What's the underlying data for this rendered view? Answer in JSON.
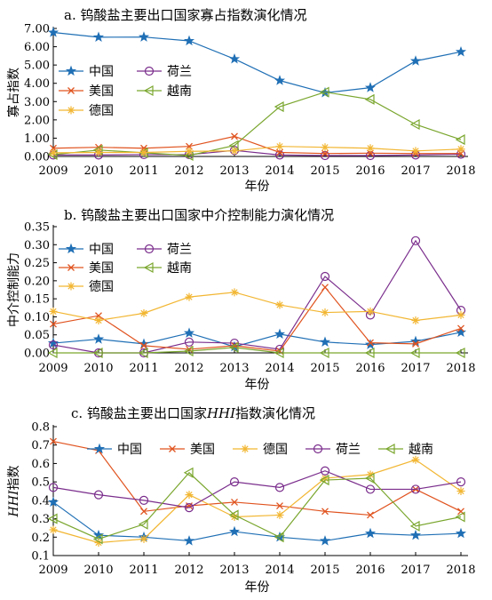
{
  "colors": {
    "China": "#1f6fb5",
    "USA": "#e0531f",
    "Germany": "#f2b632",
    "Netherlands": "#7a2d8c",
    "Vietnam": "#7aa62e"
  },
  "chart_data": [
    {
      "type": "line",
      "title": "a. 钨酸盐主要出口国家寡占指数演化情况",
      "xlabel": "年份",
      "ylabel": "寡占指数",
      "x": [
        2009,
        2010,
        2011,
        2012,
        2013,
        2014,
        2015,
        2016,
        2017,
        2018
      ],
      "ylim": [
        0,
        7
      ],
      "yticks": [
        "0.00",
        "1.00",
        "2.00",
        "3.00",
        "4.00",
        "5.00",
        "6.00",
        "7.00"
      ],
      "legend": {
        "columns": 2,
        "placement": "left-middle"
      },
      "series": [
        {
          "name": "中国",
          "key": "China",
          "marker": "star",
          "values": [
            6.78,
            6.52,
            6.53,
            6.32,
            5.33,
            4.15,
            3.48,
            3.76,
            5.22,
            5.72
          ]
        },
        {
          "name": "荷兰",
          "key": "Netherlands",
          "marker": "circle",
          "values": [
            0.08,
            0.08,
            0.1,
            0.1,
            0.33,
            0.08,
            0.05,
            0.05,
            0.08,
            0.12
          ]
        },
        {
          "name": "美国",
          "key": "USA",
          "marker": "x",
          "values": [
            0.45,
            0.5,
            0.45,
            0.55,
            1.1,
            0.22,
            0.16,
            0.18,
            0.16,
            0.16
          ]
        },
        {
          "name": "越南",
          "key": "Vietnam",
          "marker": "triangle-left",
          "values": [
            0.1,
            0.35,
            0.2,
            0.05,
            0.6,
            2.72,
            3.52,
            3.12,
            1.75,
            0.92
          ]
        },
        {
          "name": "德国",
          "key": "Germany",
          "marker": "asterisk",
          "values": [
            0.2,
            0.22,
            0.22,
            0.28,
            0.3,
            0.55,
            0.5,
            0.45,
            0.3,
            0.4
          ]
        }
      ]
    },
    {
      "type": "line",
      "title": "b. 钨酸盐主要出口国家中介控制能力演化情况",
      "xlabel": "年份",
      "ylabel": "中介控制能力",
      "x": [
        2009,
        2010,
        2011,
        2012,
        2013,
        2014,
        2015,
        2016,
        2017,
        2018
      ],
      "ylim": [
        0,
        0.35
      ],
      "yticks": [
        "0.00",
        "0.05",
        "0.10",
        "0.15",
        "0.20",
        "0.25",
        "0.30",
        "0.35"
      ],
      "legend": {
        "columns": 2,
        "placement": "top-left"
      },
      "series": [
        {
          "name": "中国",
          "key": "China",
          "marker": "star",
          "values": [
            0.027,
            0.038,
            0.025,
            0.055,
            0.017,
            0.052,
            0.03,
            0.023,
            0.032,
            0.057
          ]
        },
        {
          "name": "荷兰",
          "key": "Netherlands",
          "marker": "circle",
          "values": [
            0.022,
            0.0,
            0.0,
            0.03,
            0.027,
            0.01,
            0.212,
            0.105,
            0.311,
            0.118
          ]
        },
        {
          "name": "美国",
          "key": "USA",
          "marker": "x",
          "values": [
            0.08,
            0.103,
            0.02,
            0.01,
            0.02,
            0.005,
            0.182,
            0.028,
            0.025,
            0.068
          ]
        },
        {
          "name": "越南",
          "key": "Vietnam",
          "marker": "triangle-left",
          "values": [
            0.0,
            0.0,
            0.0,
            0.005,
            0.015,
            0.0,
            0.0,
            0.0,
            0.0,
            0.0
          ]
        },
        {
          "name": "德国",
          "key": "Germany",
          "marker": "asterisk",
          "values": [
            0.115,
            0.09,
            0.11,
            0.155,
            0.168,
            0.133,
            0.112,
            0.115,
            0.09,
            0.105
          ]
        }
      ]
    },
    {
      "type": "line",
      "title_parts": [
        "c. 钨酸盐主要出口国家",
        "HHI",
        "指数演化情况"
      ],
      "xlabel": "年份",
      "ylabel_parts": [
        "HHI",
        "指数"
      ],
      "x": [
        2009,
        2010,
        2011,
        2012,
        2013,
        2014,
        2015,
        2016,
        2017,
        2018
      ],
      "ylim": [
        0.1,
        0.8
      ],
      "yticks": [
        "0.1",
        "0.2",
        "0.3",
        "0.4",
        "0.5",
        "0.6",
        "0.7",
        "0.8"
      ],
      "legend": {
        "columns": 5,
        "placement": "top"
      },
      "series": [
        {
          "name": "中国",
          "key": "China",
          "marker": "star",
          "values": [
            0.39,
            0.21,
            0.2,
            0.18,
            0.23,
            0.2,
            0.18,
            0.22,
            0.21,
            0.22
          ]
        },
        {
          "name": "美国",
          "key": "USA",
          "marker": "x",
          "values": [
            0.72,
            0.67,
            0.34,
            0.37,
            0.39,
            0.37,
            0.34,
            0.32,
            0.46,
            0.34
          ]
        },
        {
          "name": "德国",
          "key": "Germany",
          "marker": "asterisk",
          "values": [
            0.24,
            0.17,
            0.19,
            0.43,
            0.31,
            0.32,
            0.52,
            0.54,
            0.62,
            0.45
          ]
        },
        {
          "name": "荷兰",
          "key": "Netherlands",
          "marker": "circle",
          "values": [
            0.47,
            0.43,
            0.4,
            0.36,
            0.5,
            0.47,
            0.56,
            0.46,
            0.46,
            0.5
          ]
        },
        {
          "name": "越南",
          "key": "Vietnam",
          "marker": "triangle-left",
          "values": [
            0.3,
            0.19,
            0.27,
            0.55,
            0.32,
            0.2,
            0.51,
            0.52,
            0.26,
            0.31
          ]
        }
      ]
    }
  ]
}
